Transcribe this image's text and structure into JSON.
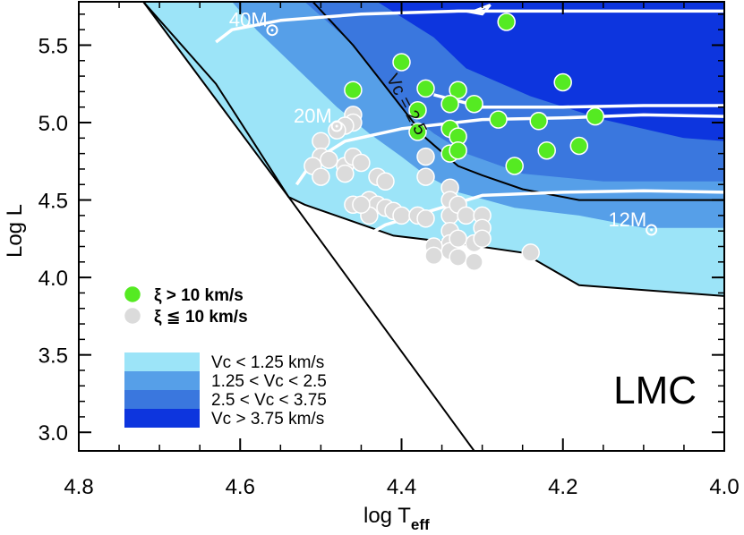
{
  "chart_data": {
    "type": "scatter",
    "title": "",
    "panel_label": "LMC",
    "xlabel": "log T",
    "xlabel_sub": "eff",
    "ylabel": "Log L",
    "xlim": [
      4.8,
      4.0
    ],
    "ylim": [
      2.88,
      5.78
    ],
    "x_reversed": true,
    "x_ticks": [
      "4.8",
      "4.6",
      "4.4",
      "4.2",
      "4.0"
    ],
    "y_ticks": [
      "3.0",
      "3.5",
      "4.0",
      "4.5",
      "5.0",
      "5.5"
    ],
    "grid": false,
    "legend_position": "bottom-left",
    "regions": [
      {
        "name": "Vc < 1.25 km/s",
        "color": "#9ce4f8",
        "polygon": [
          [
            4.72,
            5.78
          ],
          [
            4.54,
            4.52
          ],
          [
            4.52,
            4.47
          ],
          [
            4.41,
            4.27
          ],
          [
            4.33,
            4.22
          ],
          [
            4.25,
            4.16
          ],
          [
            4.18,
            3.95
          ],
          [
            4.0,
            3.88
          ],
          [
            4.0,
            5.78
          ]
        ]
      },
      {
        "name": "1.25 < Vc < 2.5",
        "color": "#569fe8",
        "polygon": [
          [
            4.61,
            5.78
          ],
          [
            4.58,
            5.6
          ],
          [
            4.55,
            5.45
          ],
          [
            4.52,
            5.3
          ],
          [
            4.48,
            5.1
          ],
          [
            4.44,
            4.93
          ],
          [
            4.4,
            4.78
          ],
          [
            4.37,
            4.66
          ],
          [
            4.33,
            4.55
          ],
          [
            4.26,
            4.45
          ],
          [
            4.18,
            4.4
          ],
          [
            4.1,
            4.32
          ],
          [
            4.0,
            4.32
          ],
          [
            4.0,
            5.78
          ]
        ]
      },
      {
        "name": "2.5 < Vc < 3.75",
        "color": "#3a77de",
        "polygon": [
          [
            4.52,
            5.78
          ],
          [
            4.47,
            5.55
          ],
          [
            4.43,
            5.3
          ],
          [
            4.4,
            5.1
          ],
          [
            4.36,
            4.93
          ],
          [
            4.32,
            4.8
          ],
          [
            4.25,
            4.67
          ],
          [
            4.15,
            4.62
          ],
          [
            4.0,
            4.62
          ],
          [
            4.0,
            5.78
          ]
        ]
      },
      {
        "name": "Vc > 3.75 km/s",
        "color": "#0d35de",
        "polygon": [
          [
            4.43,
            5.78
          ],
          [
            4.36,
            5.55
          ],
          [
            4.32,
            5.35
          ],
          [
            4.24,
            5.17
          ],
          [
            4.15,
            5.02
          ],
          [
            4.05,
            4.9
          ],
          [
            4.0,
            4.88
          ],
          [
            4.0,
            5.78
          ]
        ]
      }
    ],
    "black_lines": [
      {
        "name": "left-boundary",
        "points": [
          [
            4.72,
            5.78
          ],
          [
            4.54,
            4.52
          ],
          [
            4.52,
            4.47
          ],
          [
            4.41,
            4.27
          ],
          [
            4.33,
            4.22
          ],
          [
            4.25,
            4.16
          ],
          [
            4.18,
            3.95
          ],
          [
            4.0,
            3.88
          ]
        ]
      },
      {
        "name": "diagonal-line",
        "points": [
          [
            4.72,
            5.78
          ],
          [
            4.63,
            5.25
          ],
          [
            4.54,
            4.52
          ],
          [
            4.31,
            2.88
          ]
        ]
      },
      {
        "name": "vc-2.5-contour",
        "points": [
          [
            4.51,
            5.78
          ],
          [
            4.46,
            5.5
          ],
          [
            4.43,
            5.3
          ],
          [
            4.4,
            5.1
          ],
          [
            4.37,
            4.9
          ],
          [
            4.33,
            4.72
          ],
          [
            4.3,
            4.66
          ],
          [
            4.25,
            4.57
          ],
          [
            4.18,
            4.5
          ],
          [
            4.1,
            4.5
          ],
          [
            4.0,
            4.5
          ]
        ]
      }
    ],
    "tracks": [
      {
        "label": "40M",
        "points": [
          [
            4.63,
            5.52
          ],
          [
            4.61,
            5.6
          ],
          [
            4.55,
            5.66
          ],
          [
            4.45,
            5.7
          ],
          [
            4.33,
            5.72
          ],
          [
            4.2,
            5.72
          ],
          [
            4.0,
            5.72
          ]
        ],
        "loop": [
          [
            4.31,
            5.72
          ],
          [
            4.29,
            5.76
          ],
          [
            4.3,
            5.7
          ],
          [
            4.32,
            5.72
          ]
        ]
      },
      {
        "label": "20M",
        "points": [
          [
            4.53,
            4.6
          ],
          [
            4.51,
            4.75
          ],
          [
            4.47,
            4.88
          ],
          [
            4.4,
            4.96
          ],
          [
            4.3,
            5.02
          ],
          [
            4.2,
            5.03
          ],
          [
            4.1,
            5.05
          ],
          [
            4.0,
            5.04
          ]
        ]
      },
      {
        "label": "12M",
        "points": [
          [
            4.44,
            4.28
          ],
          [
            4.42,
            4.34
          ],
          [
            4.37,
            4.42
          ],
          [
            4.3,
            4.53
          ],
          [
            4.2,
            4.55
          ],
          [
            4.1,
            4.56
          ],
          [
            4.0,
            4.55
          ]
        ]
      },
      {
        "label": "",
        "points": [
          [
            4.36,
            5.18
          ],
          [
            4.3,
            5.1
          ],
          [
            4.2,
            5.1
          ],
          [
            4.1,
            5.11
          ],
          [
            4.0,
            5.11
          ]
        ]
      }
    ],
    "track_labels": [
      {
        "text": "40M",
        "x": 4.59,
        "y": 5.62
      },
      {
        "text": "20M",
        "x": 4.51,
        "y": 5.0
      },
      {
        "text": "12M",
        "x": 4.12,
        "y": 4.33
      }
    ],
    "contour_label": {
      "text": "Vc = 2.5",
      "x": 4.4,
      "y": 5.1
    },
    "series": [
      {
        "name": "ξ > 10 km/s",
        "color": "#55ea22",
        "points": [
          [
            4.27,
            5.65
          ],
          [
            4.4,
            5.39
          ],
          [
            4.46,
            5.21
          ],
          [
            4.37,
            5.22
          ],
          [
            4.33,
            5.21
          ],
          [
            4.2,
            5.26
          ],
          [
            4.38,
            5.08
          ],
          [
            4.34,
            5.12
          ],
          [
            4.31,
            5.12
          ],
          [
            4.28,
            5.02
          ],
          [
            4.23,
            5.01
          ],
          [
            4.16,
            5.04
          ],
          [
            4.38,
            4.94
          ],
          [
            4.34,
            4.96
          ],
          [
            4.33,
            4.91
          ],
          [
            4.34,
            4.8
          ],
          [
            4.33,
            4.82
          ],
          [
            4.26,
            4.72
          ],
          [
            4.22,
            4.82
          ],
          [
            4.18,
            4.85
          ]
        ]
      },
      {
        "name": "ξ ≦ 10 km/s",
        "color": "#dbdbdb",
        "points": [
          [
            4.46,
            5.05
          ],
          [
            4.46,
            5.0
          ],
          [
            4.47,
            4.98
          ],
          [
            4.48,
            4.95
          ],
          [
            4.5,
            4.88
          ],
          [
            4.5,
            4.78
          ],
          [
            4.51,
            4.72
          ],
          [
            4.49,
            4.76
          ],
          [
            4.5,
            4.65
          ],
          [
            4.47,
            4.72
          ],
          [
            4.46,
            4.78
          ],
          [
            4.47,
            4.67
          ],
          [
            4.45,
            4.74
          ],
          [
            4.43,
            4.65
          ],
          [
            4.42,
            4.62
          ],
          [
            4.37,
            4.78
          ],
          [
            4.37,
            4.65
          ],
          [
            4.46,
            4.47
          ],
          [
            4.44,
            4.5
          ],
          [
            4.43,
            4.47
          ],
          [
            4.42,
            4.45
          ],
          [
            4.41,
            4.43
          ],
          [
            4.4,
            4.4
          ],
          [
            4.38,
            4.4
          ],
          [
            4.37,
            4.38
          ],
          [
            4.34,
            4.58
          ],
          [
            4.34,
            4.5
          ],
          [
            4.34,
            4.4
          ],
          [
            4.34,
            4.3
          ],
          [
            4.34,
            4.22
          ],
          [
            4.33,
            4.47
          ],
          [
            4.32,
            4.4
          ],
          [
            4.3,
            4.4
          ],
          [
            4.3,
            4.32
          ],
          [
            4.31,
            4.22
          ],
          [
            4.34,
            4.17
          ],
          [
            4.33,
            4.13
          ],
          [
            4.31,
            4.1
          ],
          [
            4.36,
            4.2
          ],
          [
            4.36,
            4.14
          ],
          [
            4.33,
            4.25
          ],
          [
            4.3,
            4.25
          ],
          [
            4.24,
            4.16
          ],
          [
            4.44,
            4.4
          ],
          [
            4.45,
            4.47
          ]
        ]
      }
    ]
  }
}
